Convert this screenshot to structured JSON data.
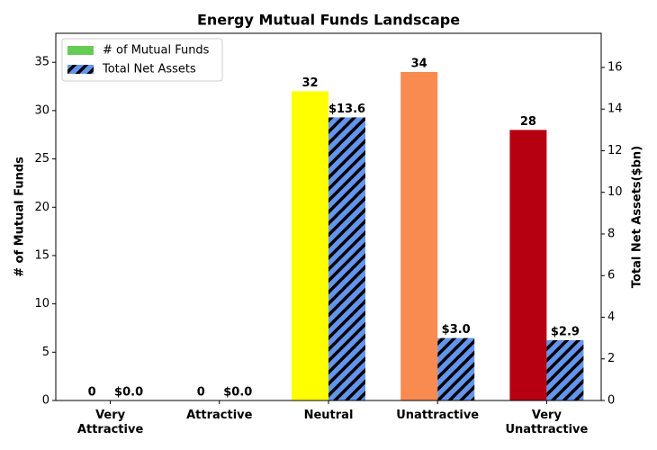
{
  "chart_data": {
    "type": "bar",
    "title": "Energy Mutual Funds Landscape",
    "categories": [
      "Very Attractive",
      "Attractive",
      "Neutral",
      "Unattractive",
      "Very Unattractive"
    ],
    "ylabel": "# of Mutual Funds",
    "y2label": "Total Net Assets($bn)",
    "ylim": [
      0,
      38
    ],
    "yticks": [
      0,
      5,
      10,
      15,
      20,
      25,
      30,
      35
    ],
    "y2lim": [
      0,
      17.64
    ],
    "y2ticks": [
      0,
      2,
      4,
      6,
      8,
      10,
      12,
      14,
      16
    ],
    "legend": "upper left",
    "series": [
      {
        "name": "# of Mutual Funds",
        "color": "#66cc55",
        "colors": [
          "#66cc55",
          "#66cc55",
          "#ffff00",
          "#f98a50",
          "#b60012"
        ],
        "values": [
          0,
          0,
          32,
          34,
          28
        ]
      },
      {
        "name": "Total Net Assets",
        "color": "#6495ed",
        "hatch": true,
        "axis": "y2",
        "values": [
          0.0,
          0.0,
          13.6,
          3.0,
          2.9
        ],
        "value_labels": [
          "$0.0",
          "$0.0",
          "$13.6",
          "$3.0",
          "$2.9"
        ]
      }
    ]
  }
}
